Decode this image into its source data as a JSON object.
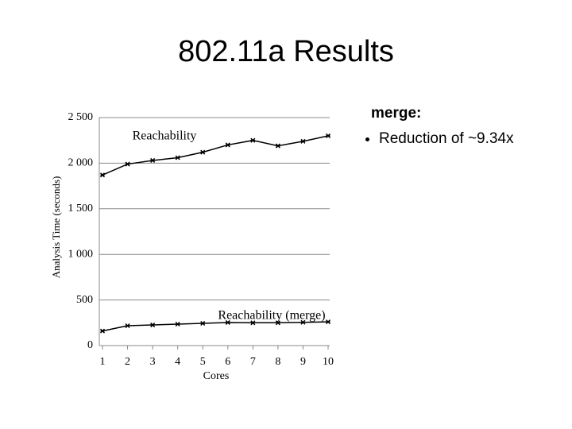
{
  "slide": {
    "title": "802.11a Results",
    "side_heading": "merge:",
    "bullets": [
      "Reduction of ~9.34x"
    ]
  },
  "chart_data": {
    "type": "line",
    "ylabel": "Analysis Time (seconds)",
    "xlabel": "Cores",
    "categories": [
      "1",
      "2",
      "3",
      "4",
      "5",
      "6",
      "7",
      "8",
      "9",
      "10"
    ],
    "series": [
      {
        "name": "Reachability",
        "color": "#000000",
        "values": [
          1870,
          1990,
          2030,
          2060,
          2120,
          2200,
          2250,
          2190,
          2240,
          2300
        ]
      },
      {
        "name": "Reachability (merge)",
        "color": "#000000",
        "values": [
          160,
          218,
          226,
          235,
          244,
          253,
          250,
          250,
          255,
          260
        ]
      }
    ],
    "ylim": [
      0,
      2500
    ],
    "yticks": [
      0,
      500,
      {
        "value": 1000,
        "label": "1 000"
      },
      {
        "value": 1500,
        "label": "1 500"
      },
      {
        "value": 2000,
        "label": "2 000"
      },
      {
        "value": 2500,
        "label": "2 500"
      }
    ],
    "grid": true,
    "grid_color": "#888888"
  }
}
